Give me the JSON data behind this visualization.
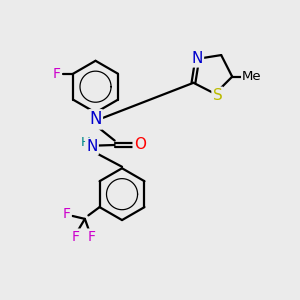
{
  "bg_color": "#ebebeb",
  "atom_colors": {
    "C": "#000000",
    "N": "#0000cc",
    "O": "#ff0000",
    "S": "#bbbb00",
    "F_single": "#cc00cc",
    "F_tri": "#cc00cc",
    "H": "#008888"
  },
  "bond_color": "#000000",
  "bond_width": 1.6,
  "font_size_atom": 10,
  "fig_width": 3.0,
  "fig_height": 3.0,
  "dpi": 100,
  "xlim": [
    0,
    10
  ],
  "ylim": [
    0,
    10
  ]
}
